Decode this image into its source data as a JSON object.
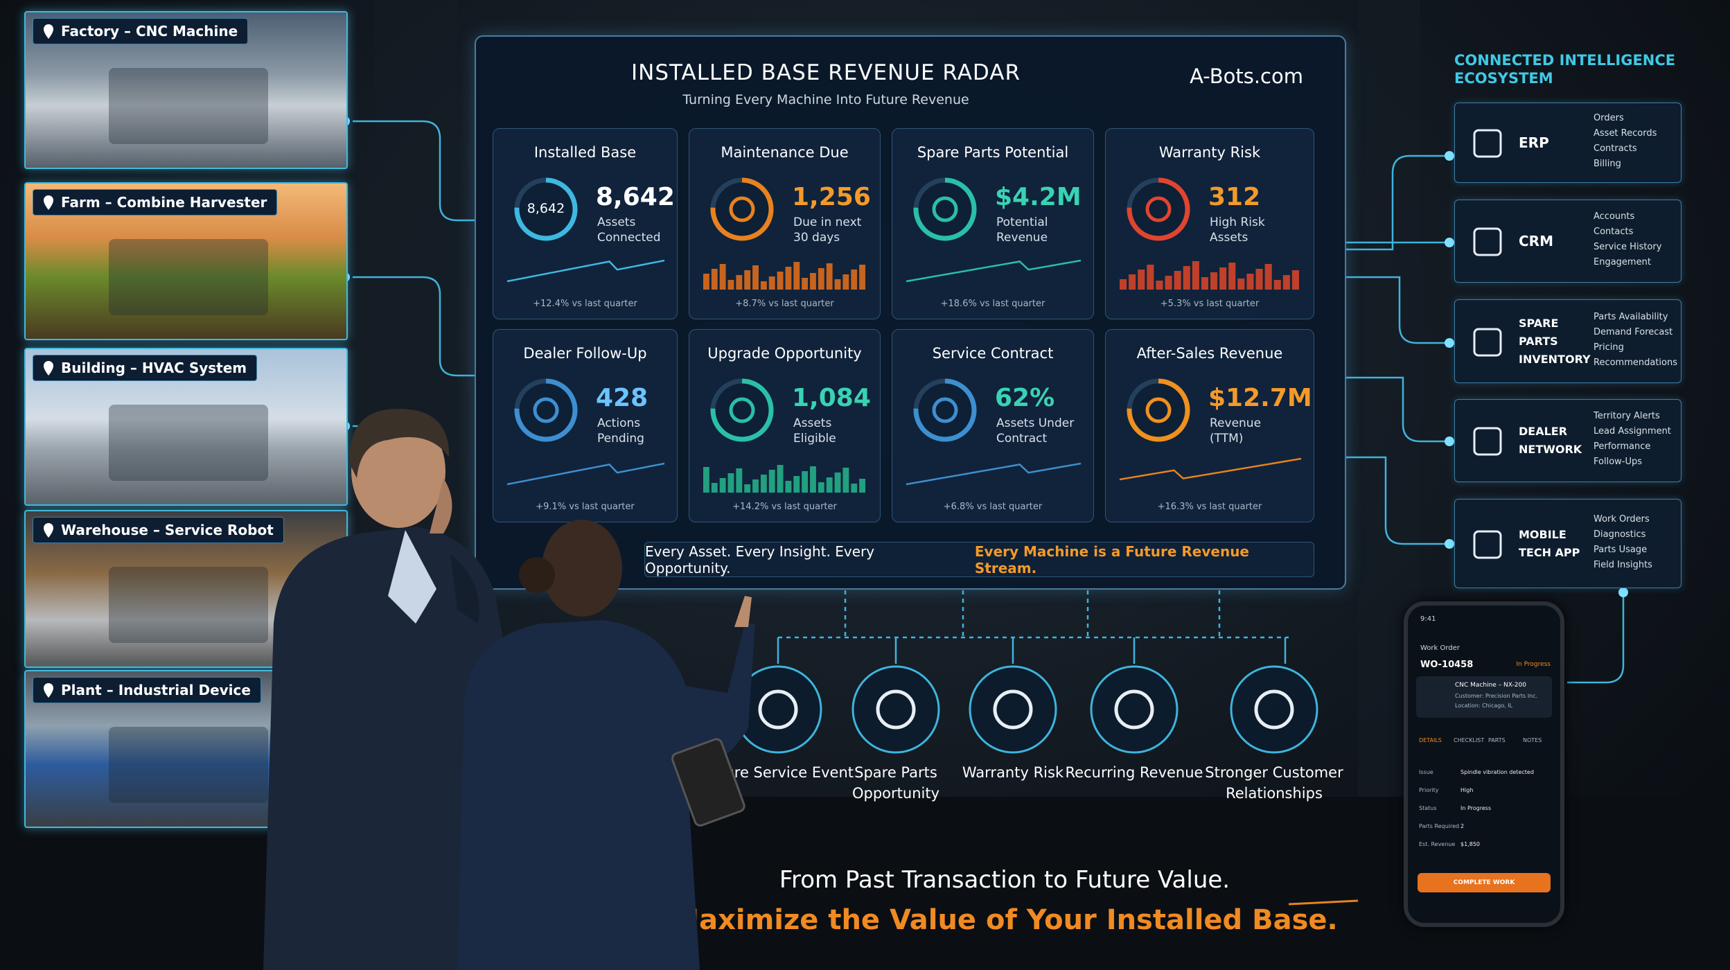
{
  "left_panels": [
    "Factory – CNC Machine",
    "Farm – Combine Harvester",
    "Building – HVAC System",
    "Warehouse – Service Robot",
    "Plant – Industrial Device"
  ],
  "dashboard": {
    "title": "INSTALLED BASE REVENUE RADAR",
    "subtitle": "Turning Every Machine Into Future Revenue",
    "brand": "A-Bots.com",
    "cards": [
      {
        "title": "Installed Base",
        "ring_label": "8,642",
        "value": "8,642",
        "label": "Assets Connected",
        "trend": "+12.4% vs last quarter"
      },
      {
        "title": "Maintenance Due",
        "value": "1,256",
        "label": "Due in next 30 days",
        "trend": "+8.7% vs last quarter"
      },
      {
        "title": "Spare Parts Potential",
        "value": "$4.2M",
        "label": "Potential Revenue",
        "trend": "+18.6% vs last quarter"
      },
      {
        "title": "Warranty Risk",
        "value": "312",
        "label": "High Risk Assets",
        "trend": "+5.3% vs last quarter"
      },
      {
        "title": "Dealer Follow-Up",
        "value": "428",
        "label": "Actions Pending",
        "trend": "+9.1% vs last quarter"
      },
      {
        "title": "Upgrade Opportunity",
        "value": "1,084",
        "label": "Assets Eligible",
        "trend": "+14.2% vs last quarter"
      },
      {
        "title": "Service Contract",
        "value": "62%",
        "label": "Assets Under Contract",
        "trend": "+6.8% vs last quarter"
      },
      {
        "title": "After-Sales Revenue",
        "value": "$12.7M",
        "label": "Revenue (TTM)",
        "trend": "+16.3% vs last quarter"
      }
    ],
    "banner": {
      "text": "Every Asset. Every Insight. Every Opportunity.",
      "highlight": "Every Machine is a Future Revenue Stream."
    }
  },
  "outcomes": [
    "Future Service Event",
    "Spare Parts Opportunity",
    "Warranty Risk",
    "Recurring Revenue",
    "Stronger Customer Relationships"
  ],
  "tagline": {
    "line1": "From Past Transaction to Future Value.",
    "line2": "Maximize the Value of Your Installed Base."
  },
  "ecosystem": {
    "title": "CONNECTED INTELLIGENCE ECOSYSTEM",
    "systems": [
      {
        "name": "ERP",
        "items": [
          "Orders",
          "Asset Records",
          "Contracts",
          "Billing"
        ]
      },
      {
        "name": "CRM",
        "items": [
          "Accounts",
          "Contacts",
          "Service History",
          "Engagement"
        ]
      },
      {
        "name": "SPARE PARTS INVENTORY",
        "items": [
          "Parts Availability",
          "Demand Forecast",
          "Pricing",
          "Recommendations"
        ]
      },
      {
        "name": "DEALER NETWORK",
        "items": [
          "Territory Alerts",
          "Lead Assignment",
          "Performance",
          "Follow-Ups"
        ]
      },
      {
        "name": "MOBILE TECH APP",
        "items": [
          "Work Orders",
          "Diagnostics",
          "Parts Usage",
          "Field Insights"
        ]
      }
    ]
  },
  "phone": {
    "time": "9:41",
    "header": "Work Order",
    "order_id": "WO-10458",
    "status_badge": "In Progress",
    "machine": "CNC Machine – NX-200",
    "customer": "Customer: Precision Parts Inc.",
    "location": "Location: Chicago, IL",
    "tabs": [
      "DETAILS",
      "CHECKLIST",
      "PARTS",
      "NOTES"
    ],
    "fields": [
      {
        "label": "Issue",
        "value": "Spindle vibration detected"
      },
      {
        "label": "Priority",
        "value": "High"
      },
      {
        "label": "Status",
        "value": "In Progress"
      },
      {
        "label": "Parts Required",
        "value": "2"
      },
      {
        "label": "Est. Revenue",
        "value": "$1,850"
      }
    ],
    "button": "COMPLETE WORK"
  }
}
